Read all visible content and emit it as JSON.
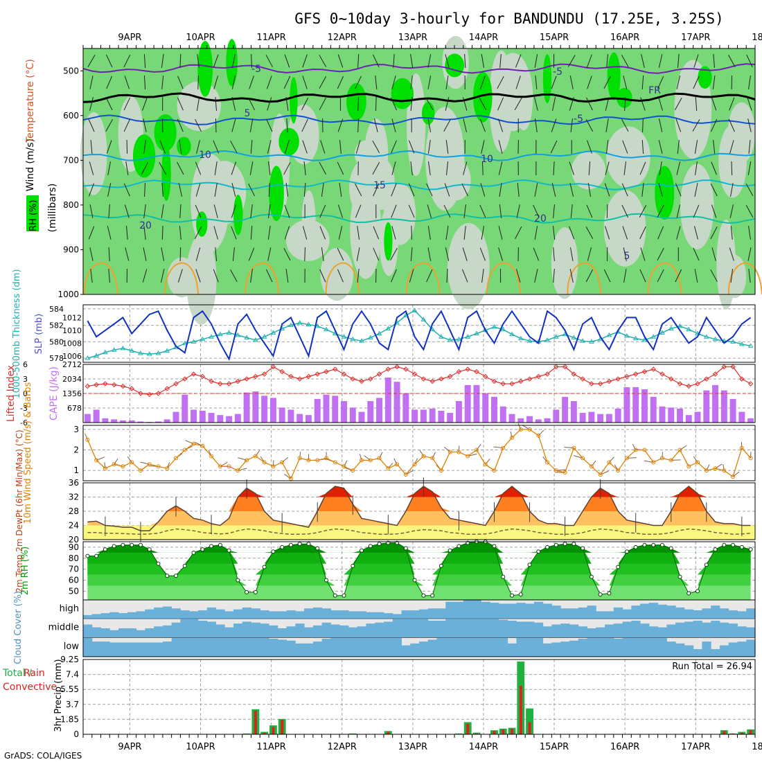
{
  "title": "GFS 0~10day 3-hourly for BANDUNDU (17.25E, 3.25S)",
  "footer": "GrADS: COLA/IGES",
  "dates": [
    "9APR",
    "10APR",
    "11APR",
    "12APR",
    "13APR",
    "14APR",
    "15APR",
    "16APR",
    "17APR",
    "18APR"
  ],
  "colors": {
    "rh_light": "#c8d8c8",
    "rh_mid": "#78d878",
    "rh_high": "#00e000",
    "slp": "#1030c0",
    "thick": "#20b0b0",
    "li": "#e03030",
    "cape": "#c070f0",
    "wind": "#e08000",
    "temp_hi": "#e02000",
    "temp_mid": "#ff8020",
    "temp_lo": "#ffc060",
    "dew": "#806040",
    "rh2m": "#00a000",
    "cloud": "#6ab0d8",
    "precip_total": "#20b040",
    "precip_conv": "#e02020"
  },
  "panels": {
    "upper": {
      "ylabel_rh": "RH (%)",
      "ylabel_temp": "Temperature (°C)",
      "ylabel_wind": "Wind (m/s)",
      "ylabel_p": "(millibars)",
      "ticks": [
        "500",
        "600",
        "700",
        "800",
        "900",
        "1000"
      ],
      "contour_labels": [
        "-5",
        "-5",
        "FR",
        "5",
        "-5",
        "10",
        "10",
        "15",
        "20",
        "20",
        "5"
      ]
    },
    "slp": {
      "ylabel_left": "1000-500mb Thickness (dm)",
      "ylabel_right": "SLP (mb)",
      "left_ticks": [
        "584",
        "582",
        "580",
        "578"
      ],
      "right_ticks": [
        "1012",
        "1010",
        "1008",
        "1006"
      ]
    },
    "li": {
      "ylabel_left": "Lifted Index",
      "ylabel_right": "CAPE (J/kg)",
      "left_ticks": [
        "-6",
        "-3",
        "0",
        "3",
        "6"
      ],
      "right_ticks": [
        "2712",
        "2034",
        "1356",
        "678"
      ]
    },
    "wind10": {
      "ylabel": "10m Wind Speed (m/s) & Barbs",
      "ticks": [
        "3",
        "2",
        "1"
      ]
    },
    "temp2m": {
      "ylabel": "2m Temp 2m DewPt (6hr Min/Max) (°C)",
      "ticks": [
        "36",
        "32",
        "28",
        "24",
        "20"
      ]
    },
    "rh2m": {
      "ylabel": "2m RH (%)",
      "ticks": [
        "90",
        "80",
        "70",
        "60",
        "50"
      ]
    },
    "cloud": {
      "ylabel": "Cloud Cover (%)",
      "levels": [
        "high",
        "middle",
        "low"
      ]
    },
    "precip": {
      "ylabel": "3hr Precip (mm)",
      "legend": "Total / Rain Convective",
      "ticks": [
        "9.25",
        "7.4",
        "5.55",
        "3.7",
        "1.85",
        "0"
      ],
      "run_total": "Run Total = 26.94"
    }
  },
  "chart_data": [
    {
      "type": "line",
      "title": "SLP (mb)",
      "ylim": [
        1005,
        1014
      ],
      "values": [
        1011.5,
        1009,
        1010,
        1011,
        1012,
        1009.5,
        1011,
        1012.5,
        1013,
        1010,
        1007.5,
        1006.5,
        1012,
        1013,
        1011,
        1008,
        1005.5,
        1011,
        1012.5,
        1010,
        1008,
        1006,
        1011,
        1012,
        1009,
        1006,
        1012,
        1013,
        1010,
        1007,
        1011,
        1013,
        1011,
        1008,
        1007,
        1012,
        1013,
        1009,
        1007,
        1011,
        1013,
        1010,
        1007,
        1012,
        1013,
        1010,
        1008,
        1011,
        1013,
        1011,
        1009,
        1008,
        1013,
        1012,
        1010,
        1007,
        1011,
        1012,
        1009,
        1007,
        1010,
        1012,
        1012,
        1009,
        1007,
        1011,
        1012,
        1010,
        1008,
        1009,
        1012,
        1010,
        1008,
        1009,
        1011,
        1012
      ]
    },
    {
      "type": "line",
      "title": "1000-500mb Thickness (dm)",
      "ylim": [
        577.5,
        584.5
      ],
      "values": [
        578,
        578.3,
        578.7,
        579,
        579.2,
        578.9,
        578.6,
        578.5,
        578.6,
        578.9,
        579.3,
        579.8,
        580,
        580.3,
        580.6,
        580.9,
        581.1,
        580.8,
        580.5,
        580.2,
        580.6,
        581.1,
        581.6,
        582,
        582.3,
        582.1,
        581.9,
        581.5,
        581,
        580.6,
        580.3,
        580.1,
        580.5,
        581,
        581.6,
        582.3,
        583.2,
        583.8,
        582.7,
        581.5,
        580.6,
        580.2,
        580.3,
        580.6,
        581,
        581.4,
        581.8,
        581.5,
        580.9,
        580.4,
        580.1,
        580,
        580.2,
        580.6,
        580.9,
        580.5,
        580.1,
        580,
        580.3,
        580.8,
        581.2,
        580.7,
        580.4,
        580.2,
        580.6,
        581.1,
        581.6,
        581.9,
        581.5,
        581,
        580.6,
        580.3,
        580.1,
        580,
        579.7,
        579.5
      ]
    },
    {
      "type": "line",
      "title": "Lifted Index",
      "ylim": [
        -6,
        6
      ],
      "values": [
        -1.5,
        -1.8,
        -2,
        -1.8,
        -1.5,
        -1,
        0,
        0.2,
        0,
        -1,
        -2,
        -3,
        -4,
        -3.5,
        -2.5,
        -2,
        -2,
        -2.5,
        -3,
        -3.5,
        -4,
        -5.5,
        -4.5,
        -3.5,
        -3,
        -3.5,
        -4,
        -4.5,
        -5,
        -4,
        -3,
        -2.5,
        -3,
        -4,
        -5,
        -5.5,
        -5,
        -4,
        -3,
        -2.5,
        -3,
        -3.5,
        -4.5,
        -5,
        -4.5,
        -3.5,
        -2.5,
        -2,
        -2,
        -2.5,
        -3,
        -3.5,
        -4,
        -5.5,
        -5.5,
        -4,
        -3,
        -2,
        -2,
        -2.5,
        -3,
        -3.5,
        -4,
        -4.5,
        -5,
        -4,
        -3,
        -2,
        -1.5,
        -2,
        -3,
        -4,
        -5.5,
        -5.5,
        -3,
        -2
      ]
    },
    {
      "type": "bar",
      "title": "CAPE (J/kg)",
      "ylim": [
        0,
        2712
      ],
      "values": [
        400,
        600,
        200,
        150,
        100,
        100,
        50,
        30,
        50,
        150,
        500,
        1300,
        600,
        550,
        450,
        350,
        300,
        400,
        1400,
        1450,
        1250,
        1150,
        700,
        600,
        400,
        350,
        1100,
        1300,
        1250,
        1000,
        700,
        500,
        1000,
        1150,
        2100,
        1900,
        1350,
        600,
        600,
        650,
        550,
        450,
        1000,
        1750,
        1750,
        1350,
        1200,
        750,
        400,
        200,
        300,
        150,
        200,
        600,
        1200,
        1000,
        450,
        500,
        400,
        400,
        650,
        1650,
        1650,
        1550,
        1200,
        750,
        700,
        650,
        350,
        500,
        1500,
        1750,
        1500,
        1100,
        500,
        200
      ]
    },
    {
      "type": "line",
      "title": "10m Wind Speed (m/s)",
      "ylim": [
        0.5,
        3.2
      ],
      "values": [
        2.5,
        1.5,
        1.1,
        1.3,
        1.2,
        1.4,
        1.0,
        1.3,
        1.2,
        1.1,
        1.6,
        2.0,
        2.3,
        2.2,
        1.7,
        1.2,
        1.2,
        1.0,
        1.5,
        1.7,
        1.4,
        1.2,
        1.4,
        0.6,
        1.6,
        1.5,
        1.5,
        1.6,
        1.4,
        1.2,
        1.0,
        1.5,
        1.5,
        1.6,
        1.1,
        1.3,
        0.8,
        1.3,
        1.7,
        1.6,
        1.0,
        1.9,
        1.9,
        1.7,
        2.0,
        1.3,
        1.0,
        2.1,
        2.6,
        3.0,
        3.0,
        2.7,
        1.4,
        1.0,
        0.9,
        2.1,
        1.6,
        1.2,
        0.8,
        1.4,
        1.0,
        1.6,
        2.0,
        2.0,
        1.4,
        1.6,
        1.5,
        2.0,
        1.2,
        1.4,
        1.0,
        1.1,
        1.0,
        0.7,
        2.1,
        1.6
      ]
    },
    {
      "type": "area",
      "title": "2m Temp (°C)",
      "ylim": [
        20,
        36
      ],
      "values": [
        25,
        25.2,
        24,
        23.8,
        23.5,
        23.5,
        22.5,
        22.5,
        25,
        28,
        29.5,
        28,
        26,
        25.5,
        24.5,
        24,
        26,
        32,
        34.5,
        33,
        28,
        25.5,
        25,
        24.5,
        24,
        23.5,
        28,
        33,
        35,
        34.5,
        30,
        26,
        25.5,
        25,
        24.5,
        24,
        28,
        33,
        35,
        33.5,
        29,
        26,
        25.5,
        25,
        24.5,
        24,
        28,
        33,
        35,
        33,
        28,
        25.5,
        24.5,
        24.5,
        24,
        24,
        28,
        32,
        34.5,
        33,
        28,
        25.5,
        25,
        24.5,
        24,
        24,
        28,
        33,
        35,
        33,
        28,
        25,
        24.5,
        24.5,
        24,
        24
      ]
    },
    {
      "type": "line",
      "title": "2m DewPt (°C)",
      "ylim": [
        20,
        36
      ],
      "values": [
        22,
        22,
        21.8,
        21.8,
        21.7,
        21.6,
        21.5,
        21.6,
        21.8,
        22.5,
        23,
        22.8,
        22.5,
        22,
        21.8,
        21.6,
        21.8,
        22.5,
        23,
        22.8,
        22.5,
        22,
        21.7,
        21.5,
        21.5,
        21.6,
        22,
        22.6,
        23,
        22.8,
        22.5,
        22,
        21.8,
        21.5,
        21.5,
        21.6,
        22,
        22.5,
        22.8,
        22.7,
        22.5,
        22,
        21.8,
        21.5,
        21.5,
        21.6,
        22,
        22.6,
        23,
        22.8,
        22.5,
        22,
        21.8,
        21.5,
        21.5,
        21.6,
        22,
        22.6,
        23,
        22.8,
        22.5,
        22,
        21.8,
        21.5,
        21.5,
        21.6,
        22,
        22.6,
        23,
        22.8,
        22.5,
        22,
        21.8,
        21.5,
        21.6,
        21.8
      ]
    },
    {
      "type": "area",
      "title": "2m RH (%)",
      "ylim": [
        42,
        95
      ],
      "values": [
        82,
        82,
        88,
        91,
        92,
        92,
        92,
        88,
        75,
        64,
        64,
        73,
        85,
        88,
        91,
        92,
        87,
        60,
        49,
        49,
        72,
        86,
        90,
        92,
        93,
        93,
        89,
        60,
        46,
        46,
        73,
        87,
        91,
        93,
        94,
        94,
        89,
        60,
        46,
        46,
        73,
        87,
        91,
        94,
        95,
        95,
        91,
        63,
        46,
        47,
        74,
        86,
        90,
        92,
        93,
        93,
        89,
        63,
        47,
        48,
        72,
        86,
        90,
        92,
        92,
        92,
        89,
        63,
        48,
        50,
        74,
        88,
        92,
        92,
        90,
        88
      ]
    },
    {
      "type": "area",
      "title": "Cloud Cover high (%)",
      "ylim": [
        0,
        100
      ],
      "values": [
        20,
        25,
        30,
        35,
        30,
        35,
        40,
        50,
        60,
        65,
        55,
        45,
        40,
        45,
        60,
        50,
        40,
        50,
        60,
        55,
        45,
        40,
        40,
        45,
        40,
        55,
        60,
        55,
        45,
        45,
        40,
        40,
        35,
        35,
        30,
        25,
        45,
        45,
        50,
        55,
        55,
        90,
        90,
        100,
        100,
        90,
        85,
        80,
        80,
        85,
        80,
        90,
        80,
        70,
        55,
        55,
        60,
        70,
        40,
        40,
        60,
        50,
        70,
        80,
        85,
        75,
        70,
        60,
        50,
        45,
        55,
        70,
        55,
        45,
        40,
        55
      ]
    },
    {
      "type": "area",
      "title": "Cloud Cover middle (%)",
      "ylim": [
        0,
        100
      ],
      "values": [
        70,
        55,
        50,
        40,
        50,
        50,
        40,
        50,
        60,
        65,
        80,
        100,
        100,
        90,
        85,
        70,
        55,
        75,
        85,
        80,
        75,
        65,
        50,
        60,
        75,
        55,
        65,
        80,
        70,
        65,
        55,
        60,
        75,
        80,
        85,
        100,
        100,
        100,
        100,
        90,
        90,
        100,
        100,
        100,
        100,
        100,
        100,
        95,
        90,
        85,
        85,
        80,
        60,
        70,
        75,
        70,
        60,
        50,
        55,
        70,
        75,
        85,
        90,
        75,
        60,
        55,
        70,
        80,
        85,
        90,
        80,
        90,
        80,
        75,
        60,
        55
      ]
    },
    {
      "type": "area",
      "title": "Cloud Cover low (%)",
      "ylim": [
        0,
        100
      ],
      "values": [
        100,
        80,
        80,
        75,
        75,
        75,
        75,
        75,
        75,
        80,
        100,
        100,
        100,
        100,
        100,
        100,
        100,
        100,
        100,
        100,
        100,
        95,
        90,
        85,
        70,
        70,
        80,
        95,
        100,
        100,
        100,
        100,
        100,
        100,
        100,
        100,
        60,
        70,
        80,
        90,
        100,
        100,
        100,
        100,
        100,
        100,
        100,
        100,
        70,
        100,
        100,
        100,
        70,
        75,
        80,
        85,
        95,
        100,
        100,
        100,
        95,
        100,
        100,
        100,
        100,
        100,
        80,
        70,
        60,
        40,
        80,
        40,
        60,
        75,
        80,
        90
      ]
    },
    {
      "type": "bar",
      "title": "3hr Precip Total (mm)",
      "ylim": [
        0,
        9.25
      ],
      "values": [
        0,
        0,
        0,
        0,
        0,
        0,
        0,
        0,
        0,
        0,
        0,
        0,
        0,
        0,
        0,
        0,
        0,
        0,
        0.1,
        3.1,
        0.3,
        1.1,
        1.9,
        0,
        0,
        0,
        0,
        0,
        0,
        0,
        0.1,
        0,
        0,
        0,
        0.4,
        0,
        0,
        0,
        0,
        0,
        0,
        0,
        0.1,
        1.5,
        0.2,
        0,
        0.5,
        0.7,
        0.8,
        9.0,
        3.2,
        0,
        0,
        0,
        0,
        0,
        0,
        0,
        0,
        0,
        0,
        0,
        0,
        0,
        0,
        0,
        0,
        0,
        0,
        0,
        0,
        0,
        0.5,
        0.1,
        0.3,
        0.6
      ]
    },
    {
      "type": "bar",
      "title": "3hr Precip Convective (mm)",
      "ylim": [
        0,
        9.25
      ],
      "values": [
        0,
        0,
        0,
        0,
        0,
        0,
        0,
        0,
        0,
        0,
        0,
        0,
        0,
        0,
        0,
        0,
        0,
        0,
        0,
        2.9,
        0.2,
        0.9,
        1.8,
        0,
        0,
        0,
        0,
        0,
        0,
        0,
        0,
        0,
        0,
        0,
        0.3,
        0,
        0,
        0,
        0,
        0,
        0,
        0,
        0,
        1.3,
        0.1,
        0,
        0.4,
        0.6,
        0.7,
        6.0,
        1.5,
        0,
        0,
        0,
        0,
        0,
        0,
        0,
        0,
        0,
        0,
        0,
        0,
        0,
        0,
        0,
        0,
        0,
        0,
        0,
        0,
        0,
        0.4,
        0.1,
        0.2,
        0.5
      ]
    }
  ]
}
